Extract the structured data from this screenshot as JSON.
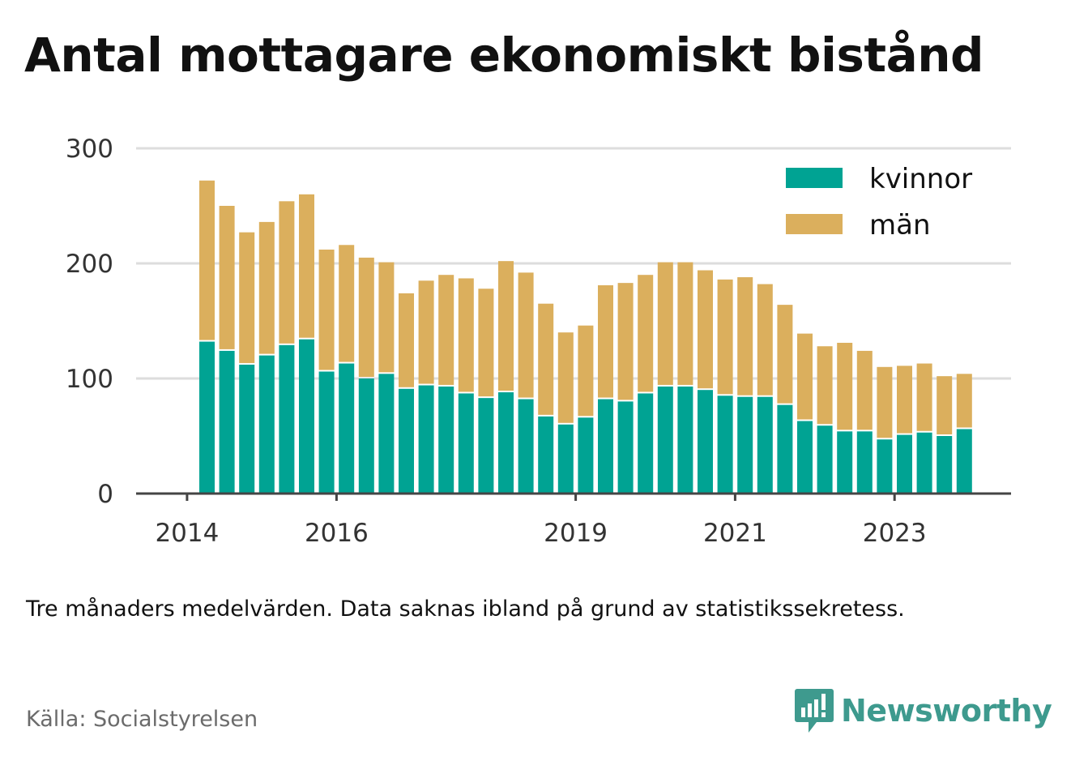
{
  "header": {
    "title": "Antal mottagare ekonomiskt bistånd"
  },
  "footer": {
    "note": "Tre månaders medelvärden. Data saknas ibland på grund av statistikssekretess.",
    "source": "Källa: Socialstyrelsen",
    "brand": "Newsworthy",
    "brand_icon": "newsworthy-logo-icon"
  },
  "colors": {
    "kvinnor": "#00a393",
    "man": "#dbaf5d",
    "grid": "#dddddd",
    "axis": "#444444",
    "brand": "#3e9a8e"
  },
  "chart_data": {
    "type": "bar",
    "stacked": true,
    "title": "Antal mottagare ekonomiskt bistånd",
    "xlabel": "",
    "ylabel": "",
    "ylim": [
      0,
      300
    ],
    "yticks": [
      "0",
      "100",
      "200",
      "300"
    ],
    "xtick_labels": [
      "2014",
      "2016",
      "2019",
      "2021",
      "2023"
    ],
    "grid": "horizontal",
    "legend_position": "top-right",
    "categories": [
      "2014 Q2",
      "2014 Q3",
      "2014 Q4",
      "2015 Q1",
      "2015 Q2",
      "2015 Q3",
      "2015 Q4",
      "2016 Q1",
      "2016 Q2",
      "2016 Q3",
      "2016 Q4",
      "2017 Q1",
      "2017 Q2",
      "2017 Q3",
      "2017 Q4",
      "2018 Q1",
      "2018 Q2",
      "2018 Q3",
      "2018 Q4",
      "2019 Q1",
      "2019 Q2",
      "2019 Q3",
      "2019 Q4",
      "2020 Q1",
      "2020 Q2",
      "2020 Q3",
      "2020 Q4",
      "2021 Q1",
      "2021 Q2",
      "2021 Q3",
      "2021 Q4",
      "2022 Q1",
      "2022 Q2",
      "2022 Q3",
      "2022 Q4",
      "2023 Q1",
      "2023 Q2",
      "2023 Q3",
      "2023 Q4"
    ],
    "series": [
      {
        "name": "kvinnor",
        "values": [
          132,
          124,
          112,
          120,
          129,
          134,
          106,
          113,
          100,
          104,
          91,
          94,
          93,
          87,
          83,
          88,
          82,
          67,
          60,
          66,
          82,
          80,
          87,
          93,
          93,
          90,
          85,
          84,
          84,
          77,
          63,
          59,
          54,
          54,
          47,
          51,
          53,
          50,
          56
        ]
      },
      {
        "name": "män",
        "values": [
          140,
          126,
          115,
          116,
          125,
          126,
          106,
          103,
          105,
          97,
          83,
          91,
          97,
          100,
          95,
          114,
          110,
          98,
          80,
          80,
          99,
          103,
          103,
          108,
          108,
          104,
          101,
          104,
          98,
          87,
          76,
          69,
          77,
          70,
          63,
          60,
          60,
          52,
          48
        ]
      }
    ]
  }
}
